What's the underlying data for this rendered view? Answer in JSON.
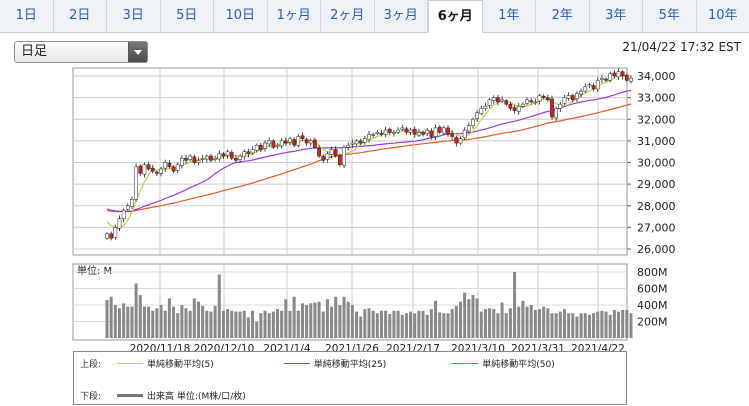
{
  "tabs": [
    "1日",
    "2日",
    "3日",
    "5日",
    "10日",
    "1ヶ月",
    "2ヶ月",
    "3ヶ月",
    "6ヶ月",
    "1年",
    "2年",
    "3年",
    "5年",
    "10年"
  ],
  "active_tab": 8,
  "period_select": {
    "value": "日足"
  },
  "timestamp": "21/04/22 17:32 EST",
  "legend": {
    "upper_label": "上段:",
    "lower_label": "下段:",
    "ma5": "単純移動平均(5)",
    "ma25": "単純移動平均(25)",
    "ma50": "単純移動平均(50)",
    "volume": "出来高 単位:(M株/口/枚)"
  },
  "colors": {
    "up": "#ffffff",
    "down": "#d02020",
    "ma5": "#c8d23c",
    "ma25": "#9a3ad6",
    "ma50": "#e85a2a",
    "volume": "#888888"
  },
  "chart_data": [
    {
      "type": "candlestick",
      "y_tick_labels": [
        "26,000",
        "27,000",
        "28,000",
        "29,000",
        "30,000",
        "31,000",
        "32,000",
        "33,000",
        "34,000"
      ],
      "ylim": [
        26000,
        34000
      ],
      "grid": true,
      "x_tick_labels": [
        "2020/11/18",
        "2020/12/10",
        "2021/1/4",
        "2021/1/26",
        "2021/2/17",
        "2021/3/10",
        "2021/3/31",
        "2021/4/22"
      ],
      "close": [
        26700,
        26500,
        27000,
        27400,
        27800,
        28000,
        28300,
        29800,
        29500,
        29900,
        29700,
        29600,
        29500,
        29700,
        30000,
        29800,
        29600,
        29900,
        30200,
        30100,
        30300,
        30000,
        30100,
        30200,
        30300,
        30100,
        30200,
        30400,
        30300,
        30500,
        30200,
        30100,
        30300,
        30500,
        30400,
        30600,
        30800,
        30600,
        30900,
        31000,
        30700,
        30800,
        31000,
        30900,
        31100,
        30800,
        31200,
        31100,
        30900,
        31000,
        30700,
        30300,
        30100,
        30400,
        30600,
        30300,
        29900,
        30700,
        30800,
        30900,
        31000,
        30900,
        31100,
        31300,
        31300,
        31400,
        31300,
        31500,
        31400,
        31400,
        31500,
        31600,
        31400,
        31500,
        31300,
        31400,
        31300,
        31500,
        31200,
        31600,
        31400,
        31600,
        31300,
        31200,
        30900,
        31100,
        31500,
        31700,
        32000,
        32300,
        32500,
        32600,
        32900,
        33000,
        32800,
        32900,
        32700,
        32500,
        32400,
        32600,
        32700,
        32900,
        32800,
        32800,
        33100,
        33000,
        32900,
        32100,
        32500,
        32700,
        33000,
        33100,
        32900,
        33200,
        33300,
        33500,
        33600,
        33400,
        33800,
        33900,
        33800,
        34100,
        34000,
        34200,
        34000,
        33800,
        33900
      ],
      "ma5_start": 27400,
      "ma25_start": 27900,
      "ma50_start": 27800
    },
    {
      "type": "bar",
      "title": "単位: M",
      "y_tick_labels": [
        "200M",
        "400M",
        "600M",
        "800M"
      ],
      "ylim": [
        0,
        800
      ],
      "values": [
        460,
        500,
        400,
        360,
        420,
        380,
        380,
        660,
        520,
        380,
        380,
        330,
        360,
        400,
        330,
        480,
        380,
        300,
        400,
        360,
        330,
        480,
        440,
        390,
        330,
        320,
        390,
        770,
        330,
        350,
        330,
        320,
        320,
        330,
        250,
        330,
        200,
        300,
        330,
        300,
        320,
        350,
        330,
        470,
        330,
        500,
        330,
        420,
        400,
        420,
        430,
        440,
        320,
        470,
        380,
        500,
        400,
        500,
        440,
        400,
        320,
        260,
        350,
        360,
        330,
        300,
        330,
        330,
        290,
        330,
        330,
        280,
        300,
        320,
        300,
        330,
        330,
        280,
        350,
        450,
        310,
        300,
        300,
        350,
        390,
        440,
        550,
        470,
        520,
        480,
        320,
        350,
        360,
        350,
        300,
        430,
        300,
        360,
        800,
        380,
        450,
        380,
        400,
        340,
        350,
        380,
        360,
        300,
        300,
        320,
        350,
        300,
        300,
        260,
        300,
        300,
        280,
        300,
        320,
        330,
        320,
        280,
        340,
        320,
        340,
        340,
        300
      ]
    }
  ]
}
